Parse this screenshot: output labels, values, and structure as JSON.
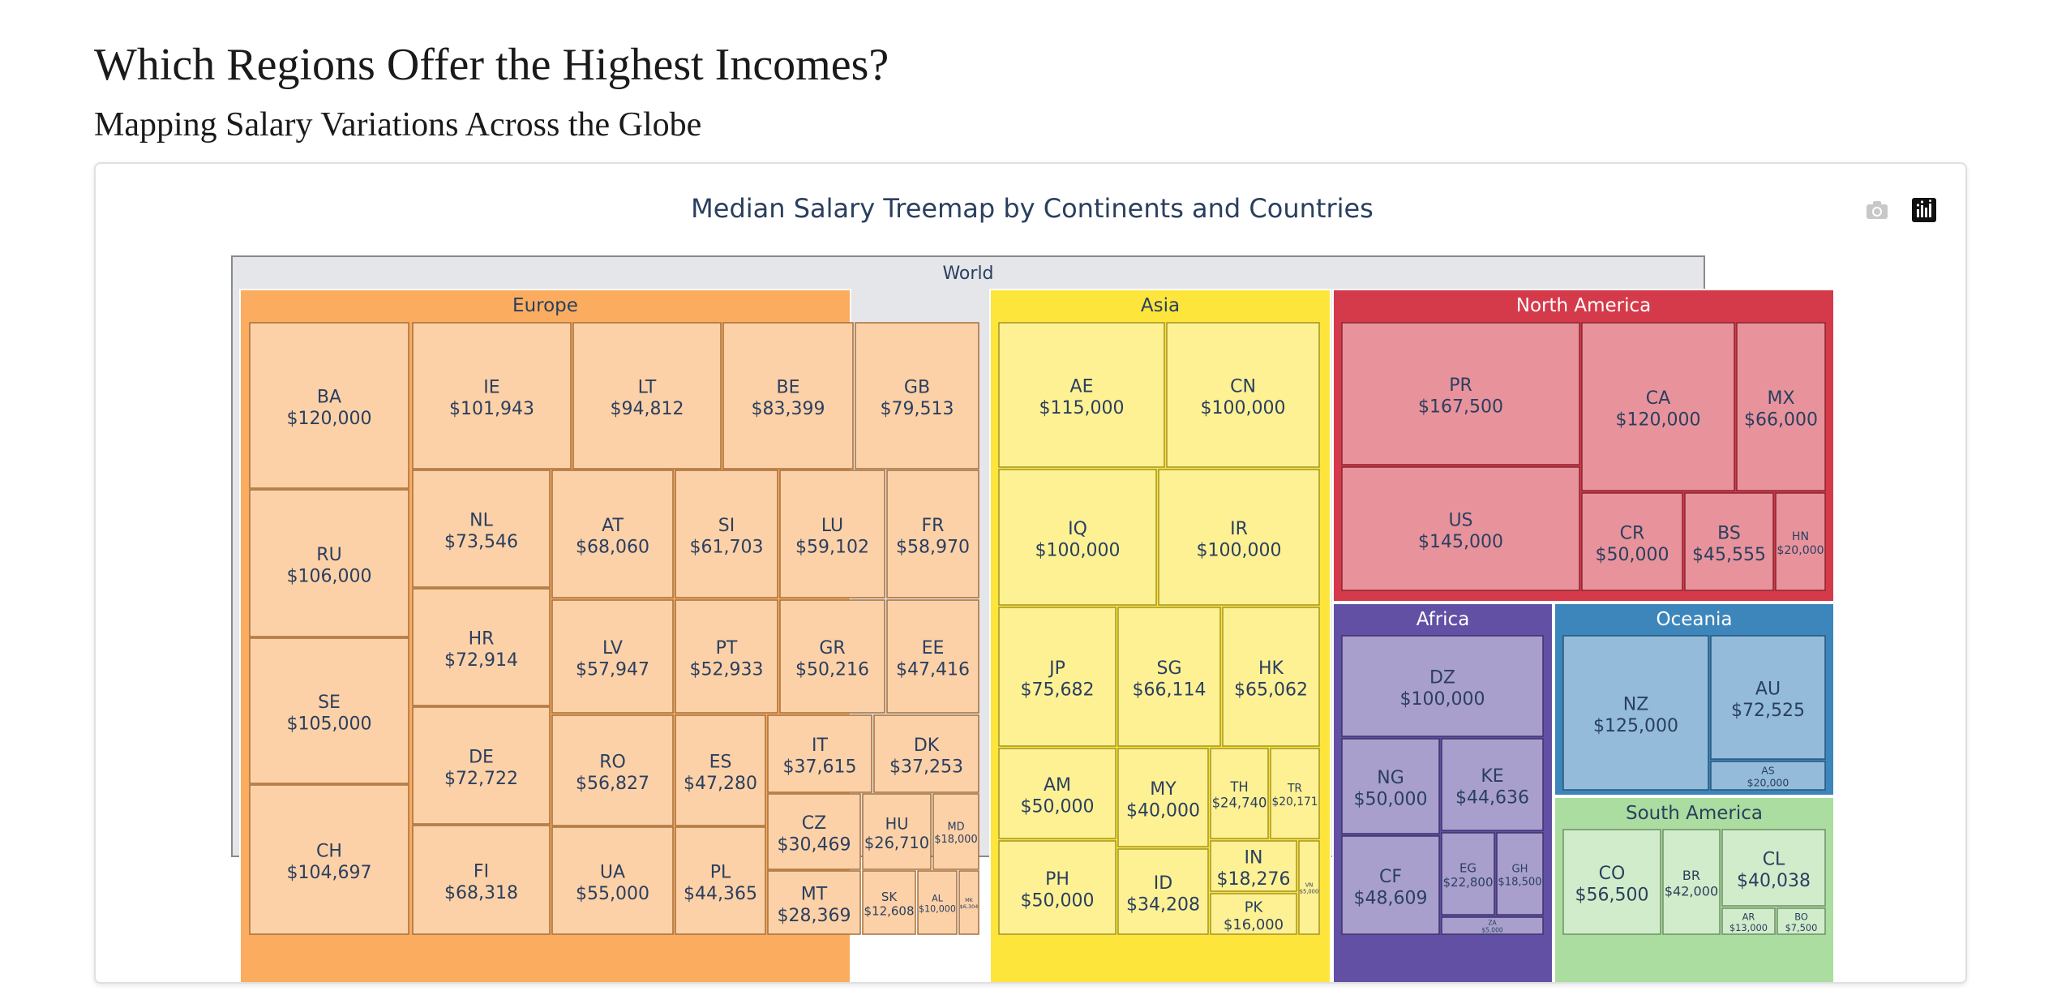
{
  "page": {
    "title": "Which Regions Offer the Highest Incomes?",
    "subtitle": "Mapping Salary Variations Across the Globe"
  },
  "toolbar": {
    "icons": [
      "camera-icon",
      "plotly-logo-icon"
    ]
  },
  "chart_data": {
    "type": "treemap",
    "title": "Median Salary Treemap by Continents and Countries",
    "root": "World",
    "value_format": "$#,###",
    "colors": {
      "root_fill": "#e5e6e9",
      "Europe": "#fbac5f",
      "Asia": "#fde53c",
      "North America": "#d53a4b",
      "Africa": "#6150a4",
      "Oceania": "#3c86bb",
      "South America": "#aadd9f"
    },
    "continents": [
      {
        "name": "Europe",
        "countries": [
          {
            "code": "BA",
            "value": 120000
          },
          {
            "code": "RU",
            "value": 106000
          },
          {
            "code": "SE",
            "value": 105000
          },
          {
            "code": "CH",
            "value": 104697
          },
          {
            "code": "IE",
            "value": 101943
          },
          {
            "code": "LT",
            "value": 94812
          },
          {
            "code": "BE",
            "value": 83399
          },
          {
            "code": "GB",
            "value": 79513
          },
          {
            "code": "NL",
            "value": 73546
          },
          {
            "code": "HR",
            "value": 72914
          },
          {
            "code": "DE",
            "value": 72722
          },
          {
            "code": "FI",
            "value": 68318
          },
          {
            "code": "AT",
            "value": 68060
          },
          {
            "code": "SI",
            "value": 61703
          },
          {
            "code": "LU",
            "value": 59102
          },
          {
            "code": "FR",
            "value": 58970
          },
          {
            "code": "LV",
            "value": 57947
          },
          {
            "code": "PT",
            "value": 52933
          },
          {
            "code": "GR",
            "value": 50216
          },
          {
            "code": "EE",
            "value": 47416
          },
          {
            "code": "RO",
            "value": 56827
          },
          {
            "code": "ES",
            "value": 47280
          },
          {
            "code": "IT",
            "value": 37615
          },
          {
            "code": "DK",
            "value": 37253
          },
          {
            "code": "UA",
            "value": 55000
          },
          {
            "code": "PL",
            "value": 44365
          },
          {
            "code": "CZ",
            "value": 30469
          },
          {
            "code": "HU",
            "value": 26710
          },
          {
            "code": "MD",
            "value": 18000
          },
          {
            "code": "MT",
            "value": 28369
          },
          {
            "code": "SK",
            "value": 12608
          },
          {
            "code": "AL",
            "value": 10000
          },
          {
            "code": "MK",
            "value": 6304
          }
        ]
      },
      {
        "name": "Asia",
        "countries": [
          {
            "code": "AE",
            "value": 115000
          },
          {
            "code": "CN",
            "value": 100000
          },
          {
            "code": "IQ",
            "value": 100000
          },
          {
            "code": "IR",
            "value": 100000
          },
          {
            "code": "JP",
            "value": 75682
          },
          {
            "code": "SG",
            "value": 66114
          },
          {
            "code": "HK",
            "value": 65062
          },
          {
            "code": "AM",
            "value": 50000
          },
          {
            "code": "MY",
            "value": 40000
          },
          {
            "code": "TH",
            "value": 24740
          },
          {
            "code": "TR",
            "value": 20171
          },
          {
            "code": "PH",
            "value": 50000
          },
          {
            "code": "ID",
            "value": 34208
          },
          {
            "code": "IN",
            "value": 18276
          },
          {
            "code": "PK",
            "value": 16000
          },
          {
            "code": "VN",
            "value": 5000
          }
        ]
      },
      {
        "name": "North America",
        "countries": [
          {
            "code": "PR",
            "value": 167500
          },
          {
            "code": "US",
            "value": 145000
          },
          {
            "code": "CA",
            "value": 120000
          },
          {
            "code": "MX",
            "value": 66000
          },
          {
            "code": "CR",
            "value": 50000
          },
          {
            "code": "BS",
            "value": 45555
          },
          {
            "code": "HN",
            "value": 20000
          }
        ]
      },
      {
        "name": "Africa",
        "countries": [
          {
            "code": "DZ",
            "value": 100000
          },
          {
            "code": "NG",
            "value": 50000
          },
          {
            "code": "KE",
            "value": 44636
          },
          {
            "code": "CF",
            "value": 48609
          },
          {
            "code": "EG",
            "value": 22800
          },
          {
            "code": "GH",
            "value": 18500
          },
          {
            "code": "ZA",
            "value": 5000
          }
        ]
      },
      {
        "name": "Oceania",
        "countries": [
          {
            "code": "NZ",
            "value": 125000
          },
          {
            "code": "AU",
            "value": 72525
          },
          {
            "code": "AS",
            "value": 20000
          }
        ]
      },
      {
        "name": "South America",
        "countries": [
          {
            "code": "CO",
            "value": 56500
          },
          {
            "code": "BR",
            "value": 42000
          },
          {
            "code": "CL",
            "value": 40038
          },
          {
            "code": "AR",
            "value": 13000
          },
          {
            "code": "BO",
            "value": 7500
          }
        ]
      }
    ]
  }
}
